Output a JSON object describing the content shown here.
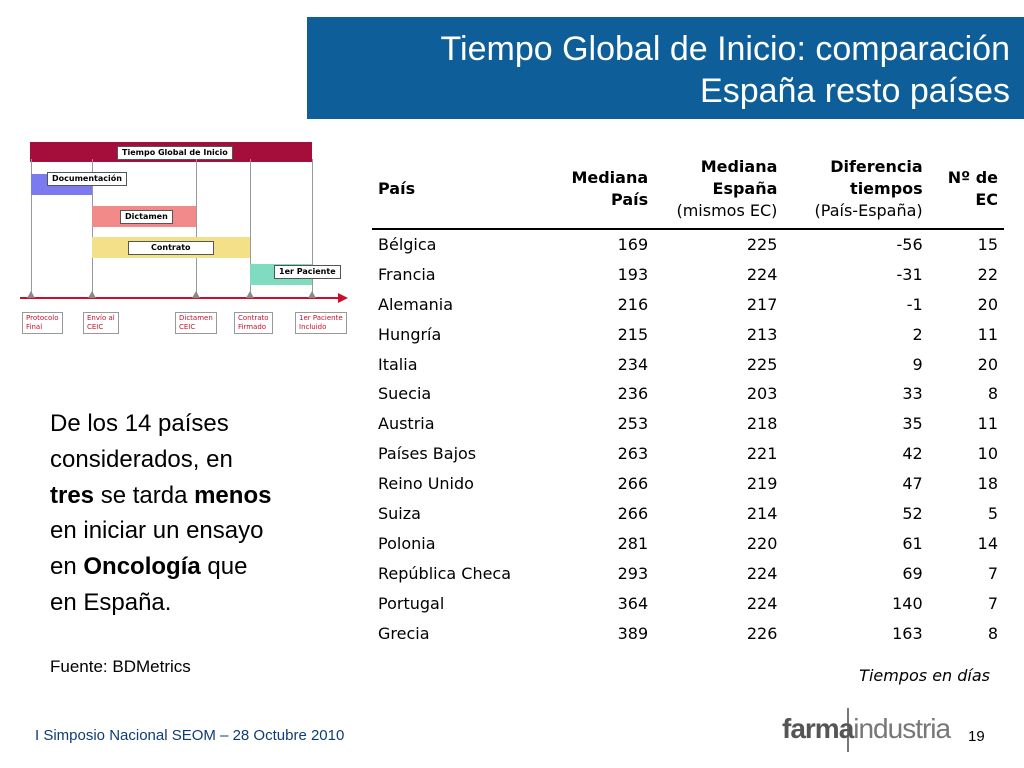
{
  "title": {
    "line1": "Tiempo Global de Inicio: comparación",
    "line2": "España resto países"
  },
  "diagram": {
    "header": "Tiempo Global de Inicio",
    "bars": [
      "Documentación",
      "Dictamen",
      "Contrato",
      "1er Paciente"
    ],
    "milestones": [
      "Protocolo\nFinal",
      "Envío al\nCEIC",
      "Dictamen\nCEIC",
      "Contrato\nFirmado",
      "1er Paciente\nIncluido"
    ],
    "colors": {
      "header": "#a50d3a",
      "documentacion": "#7b7bef",
      "dictamen": "#f28a8a",
      "contrato": "#f5e08a",
      "paciente": "#7fdcc0",
      "axis": "#c8102e"
    }
  },
  "side_text": {
    "p1": "De los 14 países",
    "p2": "considerados, en",
    "tres": "tres",
    "se_tarda": " se tarda ",
    "menos": "menos",
    "p4": "en iniciar un ensayo",
    "en": "en ",
    "oncologia": "Oncología",
    "que": " que",
    "p6": "en España."
  },
  "source": "Fuente: BDMetrics",
  "table": {
    "headers": {
      "pais": "País",
      "mediana_pais_1": "Mediana",
      "mediana_pais_2": "País",
      "mediana_espana_1": "Mediana",
      "mediana_espana_2": "España",
      "mediana_espana_3": "(mismos EC)",
      "diferencia_1": "Diferencia",
      "diferencia_2": "tiempos",
      "diferencia_3": "(País-España)",
      "num_ec_1": "Nº de",
      "num_ec_2": "EC"
    },
    "rows": [
      [
        "Bélgica",
        "169",
        "225",
        "-56",
        "15"
      ],
      [
        "Francia",
        "193",
        "224",
        "-31",
        "22"
      ],
      [
        "Alemania",
        "216",
        "217",
        "-1",
        "20"
      ],
      [
        "Hungría",
        "215",
        "213",
        "2",
        "11"
      ],
      [
        "Italia",
        "234",
        "225",
        "9",
        "20"
      ],
      [
        "Suecia",
        "236",
        "203",
        "33",
        "8"
      ],
      [
        "Austria",
        "253",
        "218",
        "35",
        "11"
      ],
      [
        "Países Bajos",
        "263",
        "221",
        "42",
        "10"
      ],
      [
        "Reino Unido",
        "266",
        "219",
        "47",
        "18"
      ],
      [
        "Suiza",
        "266",
        "214",
        "52",
        "5"
      ],
      [
        "Polonia",
        "281",
        "220",
        "61",
        "14"
      ],
      [
        "República Checa",
        "293",
        "224",
        "69",
        "7"
      ],
      [
        "Portugal",
        "364",
        "224",
        "140",
        "7"
      ],
      [
        "Grecia",
        "389",
        "226",
        "163",
        "8"
      ]
    ]
  },
  "units_note": "Tiempos en días",
  "footer": {
    "event": "I Simposio Nacional SEOM – 28 Octubre 2010",
    "logo_bold": "farma",
    "logo_light": "industria",
    "page": "19"
  }
}
